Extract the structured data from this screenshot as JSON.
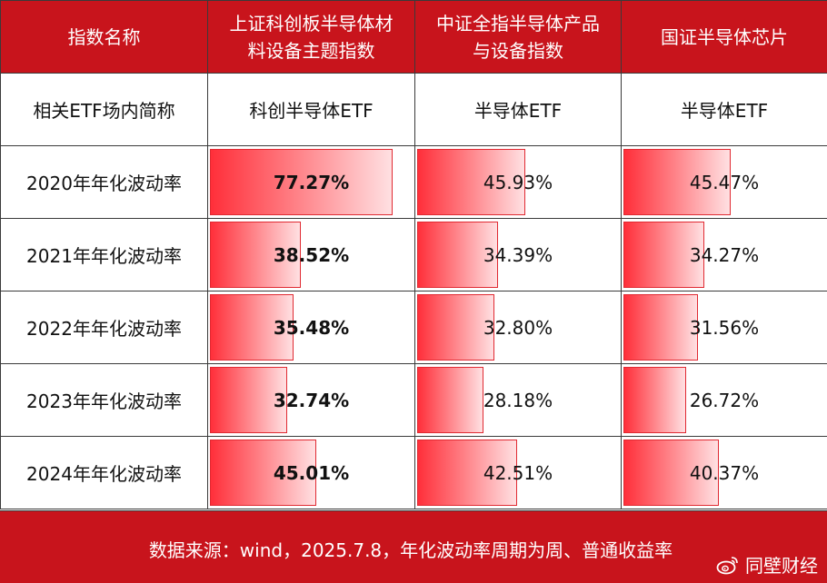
{
  "header": {
    "col0": "指数名称",
    "col1_line1": "上证科创板半导体材",
    "col1_line2": "料设备主题指数",
    "col2_line1": "中证全指半导体产品",
    "col2_line2": "与设备指数",
    "col3": "国证半导体芯片"
  },
  "etf_row": {
    "label": "相关ETF场内简称",
    "values": [
      "科创半导体ETF",
      "半导体ETF",
      "半导体ETF"
    ]
  },
  "rows": [
    {
      "label": "2020年年化波动率",
      "values": [
        "77.27%",
        "45.93%",
        "45.47%"
      ],
      "nums": [
        77.27,
        45.93,
        45.47
      ]
    },
    {
      "label": "2021年年化波动率",
      "values": [
        "38.52%",
        "34.39%",
        "34.27%"
      ],
      "nums": [
        38.52,
        34.39,
        34.27
      ]
    },
    {
      "label": "2022年年化波动率",
      "values": [
        "35.48%",
        "32.80%",
        "31.56%"
      ],
      "nums": [
        35.48,
        32.8,
        31.56
      ]
    },
    {
      "label": "2023年年化波动率",
      "values": [
        "32.74%",
        "28.18%",
        "26.72%"
      ],
      "nums": [
        32.74,
        28.18,
        26.72
      ]
    },
    {
      "label": "2024年年化波动率",
      "values": [
        "45.01%",
        "42.51%",
        "40.37%"
      ],
      "nums": [
        45.01,
        42.51,
        40.37
      ]
    }
  ],
  "footer": {
    "source": "数据来源：wind，2025.7.8，年化波动率周期为周、普通收益率"
  },
  "watermark": {
    "text": "同壁财经"
  },
  "colors": {
    "header_bg": "#c8141c",
    "bar_start": "#ff2f3a",
    "bar_end": "#ffe0e2"
  }
}
